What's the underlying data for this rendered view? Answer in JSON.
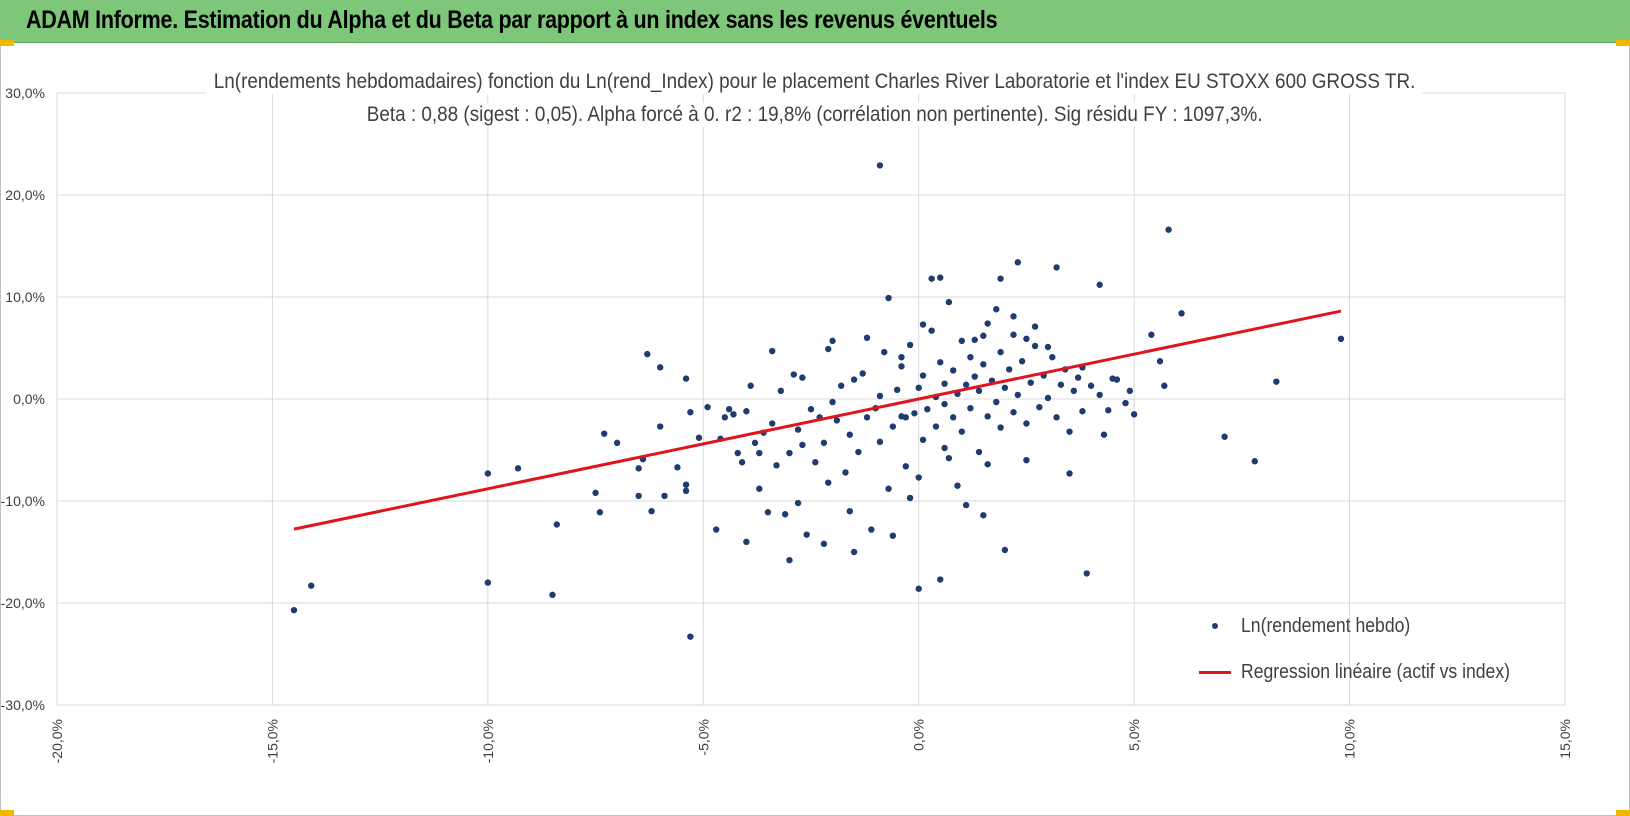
{
  "header": {
    "title": "ADAM Informe. Estimation du Alpha et du Beta par rapport à un index sans les revenus éventuels"
  },
  "colors": {
    "banner": "#7dc67a",
    "points": "#1f3c6e",
    "regression": "#e0141c",
    "grid": "#d9d9d9"
  },
  "chart_data": {
    "type": "scatter",
    "title_line1": "Ln(rendements hebdomadaires) fonction du Ln(rend_Index) pour le placement Charles River Laboratorie et l'index EU STOXX 600 GROSS TR.",
    "title_line2": "Beta : 0,88 (sigest : 0,05). Alpha forcé à 0. r2 : 19,8% (corrélation non pertinente). Sig résidu FY : 1097,3%.",
    "xlim": [
      -0.2,
      0.15
    ],
    "ylim": [
      -0.3,
      0.3
    ],
    "x_ticks": [
      {
        "value": -0.2,
        "label": "-20,0%"
      },
      {
        "value": -0.15,
        "label": "-15,0%"
      },
      {
        "value": -0.1,
        "label": "-10,0%"
      },
      {
        "value": -0.05,
        "label": "-5,0%"
      },
      {
        "value": 0.0,
        "label": "0,0%"
      },
      {
        "value": 0.05,
        "label": "5,0%"
      },
      {
        "value": 0.1,
        "label": "10,0%"
      },
      {
        "value": 0.15,
        "label": "15,0%"
      }
    ],
    "y_ticks": [
      {
        "value": 0.3,
        "label": "30,0%"
      },
      {
        "value": 0.2,
        "label": "20,0%"
      },
      {
        "value": 0.1,
        "label": "10,0%"
      },
      {
        "value": 0.0,
        "label": "0,0%"
      },
      {
        "value": -0.1,
        "label": "-10,0%"
      },
      {
        "value": -0.2,
        "label": "-20,0%"
      },
      {
        "value": -0.3,
        "label": "-30,0%"
      }
    ],
    "grid": true,
    "series": [
      {
        "name": "Ln(rendement hebdo)",
        "kind": "scatter",
        "points": [
          [
            -0.145,
            -0.207
          ],
          [
            -0.141,
            -0.183
          ],
          [
            -0.1,
            -0.18
          ],
          [
            -0.1,
            -0.073
          ],
          [
            -0.093,
            -0.068
          ],
          [
            -0.085,
            -0.192
          ],
          [
            -0.084,
            -0.123
          ],
          [
            -0.075,
            -0.092
          ],
          [
            -0.074,
            -0.111
          ],
          [
            -0.073,
            -0.034
          ],
          [
            -0.07,
            -0.043
          ],
          [
            -0.065,
            -0.095
          ],
          [
            -0.065,
            -0.068
          ],
          [
            -0.064,
            -0.059
          ],
          [
            -0.063,
            0.044
          ],
          [
            -0.062,
            -0.11
          ],
          [
            -0.06,
            0.031
          ],
          [
            -0.06,
            -0.027
          ],
          [
            -0.059,
            -0.095
          ],
          [
            -0.056,
            -0.067
          ],
          [
            -0.054,
            -0.09
          ],
          [
            -0.054,
            -0.084
          ],
          [
            -0.054,
            0.02
          ],
          [
            -0.053,
            -0.233
          ],
          [
            -0.053,
            -0.013
          ],
          [
            -0.051,
            -0.038
          ],
          [
            -0.049,
            -0.008
          ],
          [
            -0.047,
            -0.128
          ],
          [
            -0.046,
            -0.039
          ],
          [
            -0.045,
            -0.018
          ],
          [
            -0.044,
            -0.01
          ],
          [
            -0.043,
            -0.015
          ],
          [
            -0.042,
            -0.053
          ],
          [
            -0.041,
            -0.062
          ],
          [
            -0.04,
            -0.14
          ],
          [
            -0.04,
            -0.012
          ],
          [
            -0.039,
            0.013
          ],
          [
            -0.038,
            -0.043
          ],
          [
            -0.037,
            -0.088
          ],
          [
            -0.037,
            -0.053
          ],
          [
            -0.036,
            -0.033
          ],
          [
            -0.035,
            -0.111
          ],
          [
            -0.034,
            0.047
          ],
          [
            -0.034,
            -0.024
          ],
          [
            -0.033,
            -0.065
          ],
          [
            -0.032,
            0.008
          ],
          [
            -0.031,
            -0.113
          ],
          [
            -0.03,
            -0.053
          ],
          [
            -0.029,
            0.024
          ],
          [
            -0.028,
            -0.102
          ],
          [
            -0.028,
            -0.03
          ],
          [
            -0.027,
            0.021
          ],
          [
            -0.027,
            -0.045
          ],
          [
            -0.026,
            -0.133
          ],
          [
            -0.025,
            -0.01
          ],
          [
            -0.024,
            -0.062
          ],
          [
            -0.023,
            -0.018
          ],
          [
            -0.022,
            -0.142
          ],
          [
            -0.022,
            -0.043
          ],
          [
            -0.021,
            -0.082
          ],
          [
            -0.021,
            0.049
          ],
          [
            -0.02,
            -0.003
          ],
          [
            -0.019,
            -0.021
          ],
          [
            -0.018,
            0.013
          ],
          [
            -0.017,
            -0.072
          ],
          [
            -0.016,
            -0.035
          ],
          [
            -0.016,
            -0.11
          ],
          [
            -0.015,
            0.019
          ],
          [
            -0.014,
            -0.052
          ],
          [
            -0.013,
            0.025
          ],
          [
            -0.012,
            -0.018
          ],
          [
            -0.012,
            0.06
          ],
          [
            -0.011,
            -0.128
          ],
          [
            -0.01,
            -0.009
          ],
          [
            -0.009,
            0.003
          ],
          [
            -0.009,
            -0.042
          ],
          [
            -0.008,
            0.046
          ],
          [
            -0.007,
            -0.088
          ],
          [
            -0.006,
            -0.027
          ],
          [
            -0.005,
            0.009
          ],
          [
            -0.004,
            0.032
          ],
          [
            -0.004,
            -0.017
          ],
          [
            -0.003,
            -0.066
          ],
          [
            -0.002,
            0.053
          ],
          [
            -0.001,
            -0.014
          ],
          [
            0.0,
            0.011
          ],
          [
            0.001,
            -0.04
          ],
          [
            0.001,
            0.023
          ],
          [
            0.002,
            -0.01
          ],
          [
            0.003,
            0.067
          ],
          [
            0.004,
            0.002
          ],
          [
            0.004,
            -0.027
          ],
          [
            0.005,
            0.036
          ],
          [
            0.006,
            -0.005
          ],
          [
            0.006,
            0.015
          ],
          [
            0.007,
            -0.058
          ],
          [
            0.008,
            0.028
          ],
          [
            0.008,
            -0.018
          ],
          [
            0.009,
            0.005
          ],
          [
            0.01,
            0.057
          ],
          [
            0.01,
            -0.032
          ],
          [
            0.011,
            0.014
          ],
          [
            0.012,
            0.041
          ],
          [
            0.012,
            -0.009
          ],
          [
            0.013,
            0.022
          ],
          [
            0.014,
            -0.052
          ],
          [
            0.014,
            0.008
          ],
          [
            0.015,
            0.034
          ],
          [
            0.016,
            -0.017
          ],
          [
            0.016,
            0.074
          ],
          [
            0.017,
            0.018
          ],
          [
            0.018,
            -0.003
          ],
          [
            0.019,
            0.046
          ],
          [
            0.019,
            -0.028
          ],
          [
            0.02,
            0.011
          ],
          [
            0.021,
            0.029
          ],
          [
            0.022,
            -0.013
          ],
          [
            0.022,
            0.063
          ],
          [
            0.023,
            0.004
          ],
          [
            0.024,
            0.037
          ],
          [
            0.025,
            -0.024
          ],
          [
            0.026,
            0.016
          ],
          [
            0.027,
            0.052
          ],
          [
            0.028,
            -0.008
          ],
          [
            0.029,
            0.023
          ],
          [
            0.03,
            0.001
          ],
          [
            0.031,
            0.041
          ],
          [
            0.032,
            -0.018
          ],
          [
            0.033,
            0.014
          ],
          [
            0.034,
            0.029
          ],
          [
            0.035,
            -0.032
          ],
          [
            0.036,
            0.008
          ],
          [
            0.037,
            0.021
          ],
          [
            0.038,
            -0.012
          ],
          [
            0.04,
            0.013
          ],
          [
            0.042,
            0.004
          ],
          [
            0.044,
            -0.011
          ],
          [
            0.046,
            0.019
          ],
          [
            0.048,
            -0.004
          ],
          [
            -0.009,
            0.229
          ],
          [
            -0.007,
            0.099
          ],
          [
            -0.004,
            0.041
          ],
          [
            -0.003,
            -0.018
          ],
          [
            0.0,
            -0.077
          ],
          [
            0.0,
            -0.186
          ],
          [
            0.001,
            0.073
          ],
          [
            0.003,
            0.118
          ],
          [
            0.005,
            0.119
          ],
          [
            0.005,
            -0.177
          ],
          [
            0.006,
            -0.048
          ],
          [
            0.007,
            0.095
          ],
          [
            0.009,
            -0.085
          ],
          [
            0.011,
            -0.104
          ],
          [
            0.013,
            0.058
          ],
          [
            0.015,
            -0.114
          ],
          [
            0.016,
            -0.064
          ],
          [
            0.018,
            0.088
          ],
          [
            0.019,
            0.118
          ],
          [
            0.02,
            -0.148
          ],
          [
            0.022,
            0.081
          ],
          [
            0.023,
            0.134
          ],
          [
            0.025,
            -0.06
          ],
          [
            0.027,
            0.071
          ],
          [
            0.03,
            0.051
          ],
          [
            0.032,
            0.129
          ],
          [
            0.035,
            -0.073
          ],
          [
            0.038,
            0.031
          ],
          [
            0.039,
            -0.171
          ],
          [
            0.042,
            0.112
          ],
          [
            0.043,
            -0.035
          ],
          [
            0.045,
            0.02
          ],
          [
            0.049,
            0.008
          ],
          [
            0.05,
            -0.015
          ],
          [
            0.054,
            0.063
          ],
          [
            0.056,
            0.037
          ],
          [
            0.057,
            0.013
          ],
          [
            0.058,
            0.166
          ],
          [
            0.061,
            0.084
          ],
          [
            0.071,
            -0.037
          ],
          [
            0.078,
            -0.061
          ],
          [
            0.083,
            0.017
          ],
          [
            0.098,
            0.059
          ],
          [
            -0.03,
            -0.158
          ],
          [
            -0.015,
            -0.15
          ],
          [
            -0.006,
            -0.134
          ],
          [
            -0.002,
            -0.097
          ],
          [
            0.015,
            0.062
          ],
          [
            0.025,
            0.059
          ],
          [
            -0.02,
            0.057
          ]
        ]
      },
      {
        "name": "Regression linéaire (actif vs index)",
        "kind": "line",
        "points": [
          [
            -0.145,
            -0.1276
          ],
          [
            0.098,
            0.0862
          ]
        ]
      }
    ],
    "legend": {
      "position": "bottom-right",
      "items": [
        "Ln(rendement hebdo)",
        "Regression linéaire (actif vs index)"
      ]
    }
  }
}
